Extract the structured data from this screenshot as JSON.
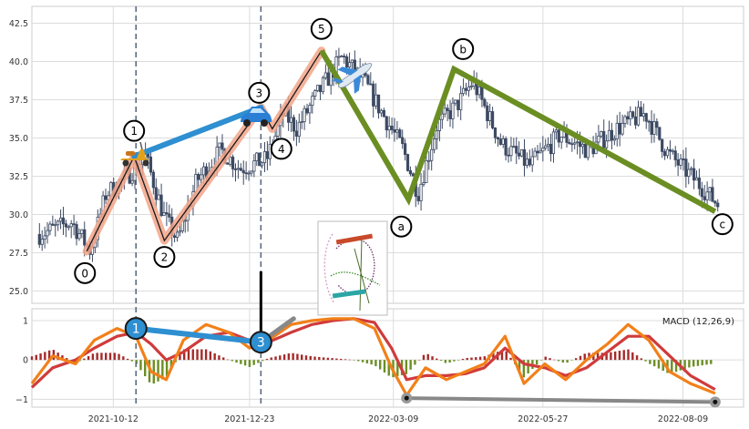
{
  "chart_data": [
    {
      "type": "candlestick",
      "title": "",
      "xlabel": "",
      "ylabel": "",
      "ylim": [
        24.2,
        43.6
      ],
      "yticks": [
        "25.0",
        "27.5",
        "30.0",
        "32.5",
        "35.0",
        "37.5",
        "40.0",
        "42.5"
      ],
      "ytick_values": [
        25.0,
        27.5,
        30.0,
        32.5,
        35.0,
        37.5,
        40.0,
        42.5
      ],
      "x_range": [
        "2021-08-30",
        "2022-09-10"
      ],
      "xticks": [
        "2021-10-12",
        "2021-12-23",
        "2022-03-09",
        "2022-05-27",
        "2022-08-09"
      ],
      "grid": true,
      "price_anchors": [
        {
          "date": "2021-09-03",
          "price": 28.7
        },
        {
          "date": "2021-09-20",
          "price": 29.5
        },
        {
          "date": "2021-09-30",
          "price": 27.6
        },
        {
          "date": "2021-10-08",
          "price": 31.3
        },
        {
          "date": "2021-10-20",
          "price": 32.6
        },
        {
          "date": "2021-10-29",
          "price": 33.8
        },
        {
          "date": "2021-11-08",
          "price": 29.8
        },
        {
          "date": "2021-11-15",
          "price": 28.3
        },
        {
          "date": "2021-11-25",
          "price": 32.2
        },
        {
          "date": "2021-12-08",
          "price": 34.2
        },
        {
          "date": "2021-12-18",
          "price": 33.0
        },
        {
          "date": "2022-01-01",
          "price": 33.6
        },
        {
          "date": "2022-01-10",
          "price": 36.6
        },
        {
          "date": "2022-01-17",
          "price": 35.6
        },
        {
          "date": "2022-01-28",
          "price": 37.9
        },
        {
          "date": "2022-02-10",
          "price": 40.3
        },
        {
          "date": "2022-02-22",
          "price": 38.6
        },
        {
          "date": "2022-03-05",
          "price": 36.2
        },
        {
          "date": "2022-03-14",
          "price": 34.3
        },
        {
          "date": "2022-03-22",
          "price": 31.4
        },
        {
          "date": "2022-04-01",
          "price": 35.8
        },
        {
          "date": "2022-04-12",
          "price": 37.2
        },
        {
          "date": "2022-04-20",
          "price": 38.7
        },
        {
          "date": "2022-05-05",
          "price": 34.6
        },
        {
          "date": "2022-05-20",
          "price": 33.2
        },
        {
          "date": "2022-06-05",
          "price": 35.2
        },
        {
          "date": "2022-06-20",
          "price": 34.2
        },
        {
          "date": "2022-07-05",
          "price": 35.6
        },
        {
          "date": "2022-07-20",
          "price": 36.6
        },
        {
          "date": "2022-08-01",
          "price": 34.0
        },
        {
          "date": "2022-08-15",
          "price": 32.3
        },
        {
          "date": "2022-08-28",
          "price": 30.6
        }
      ],
      "waves": [
        {
          "label": "0",
          "date": "2021-09-28",
          "price": 27.6
        },
        {
          "label": "1",
          "date": "2021-10-23",
          "price": 33.8
        },
        {
          "label": "2",
          "date": "2021-11-08",
          "price": 28.3
        },
        {
          "label": "3",
          "date": "2021-12-29",
          "price": 37.0
        },
        {
          "label": "4",
          "date": "2022-01-04",
          "price": 35.6
        },
        {
          "label": "5",
          "date": "2022-01-30",
          "price": 40.7
        },
        {
          "label": "a",
          "date": "2022-03-17",
          "price": 31.0
        },
        {
          "label": "b",
          "date": "2022-04-10",
          "price": 39.5
        },
        {
          "label": "c",
          "date": "2022-08-26",
          "price": 30.2
        }
      ],
      "vertical_markers": [
        "2021-10-24",
        "2021-12-29"
      ]
    },
    {
      "type": "line",
      "legend": "MACD (12,26,9)",
      "ylim": [
        -1.2,
        1.3
      ],
      "yticks": [
        "−1",
        "0",
        "1"
      ],
      "ytick_values": [
        -1,
        0,
        1
      ],
      "series": [
        {
          "name": "macd",
          "color": "#f28019",
          "dates": [
            "2021-08-30",
            "2021-09-10",
            "2021-09-22",
            "2021-10-02",
            "2021-10-14",
            "2021-10-24",
            "2021-11-01",
            "2021-11-09",
            "2021-11-18",
            "2021-11-30",
            "2021-12-12",
            "2021-12-23",
            "2022-01-02",
            "2022-01-14",
            "2022-01-25",
            "2022-02-05",
            "2022-02-16",
            "2022-02-27",
            "2022-03-08",
            "2022-03-16",
            "2022-03-26",
            "2022-04-06",
            "2022-04-16",
            "2022-04-26",
            "2022-05-07",
            "2022-05-17",
            "2022-05-28",
            "2022-06-08",
            "2022-06-19",
            "2022-06-30",
            "2022-07-11",
            "2022-07-22",
            "2022-08-02",
            "2022-08-13",
            "2022-08-26"
          ],
          "values": [
            -0.6,
            0.1,
            -0.1,
            0.5,
            0.8,
            0.6,
            -0.3,
            -0.5,
            0.5,
            0.9,
            0.7,
            0.3,
            0.5,
            0.9,
            1.0,
            1.05,
            1.05,
            0.8,
            -0.2,
            -0.9,
            -0.2,
            -0.5,
            -0.3,
            -0.1,
            0.6,
            -0.6,
            -0.1,
            -0.5,
            0.0,
            0.4,
            0.9,
            0.5,
            -0.3,
            -0.6,
            -0.85
          ]
        },
        {
          "name": "signal",
          "color": "#d03b3b",
          "dates": [
            "2021-08-30",
            "2021-09-10",
            "2021-09-22",
            "2021-10-02",
            "2021-10-14",
            "2021-10-24",
            "2021-11-01",
            "2021-11-09",
            "2021-11-18",
            "2021-11-30",
            "2021-12-12",
            "2021-12-23",
            "2022-01-02",
            "2022-01-14",
            "2022-01-25",
            "2022-02-05",
            "2022-02-16",
            "2022-02-27",
            "2022-03-08",
            "2022-03-16",
            "2022-03-26",
            "2022-04-06",
            "2022-04-16",
            "2022-04-26",
            "2022-05-07",
            "2022-05-17",
            "2022-05-28",
            "2022-06-08",
            "2022-06-19",
            "2022-06-30",
            "2022-07-11",
            "2022-07-22",
            "2022-08-02",
            "2022-08-13",
            "2022-08-26"
          ],
          "values": [
            -0.7,
            -0.2,
            0.0,
            0.3,
            0.6,
            0.7,
            0.4,
            0.0,
            0.2,
            0.6,
            0.7,
            0.5,
            0.45,
            0.7,
            0.9,
            1.0,
            1.05,
            0.95,
            0.3,
            -0.5,
            -0.4,
            -0.4,
            -0.35,
            -0.2,
            0.3,
            -0.1,
            -0.2,
            -0.4,
            -0.2,
            0.2,
            0.6,
            0.6,
            0.1,
            -0.4,
            -0.75
          ]
        }
      ],
      "histogram_colors": {
        "positive": "#a52a2a",
        "negative": "#6b8e23"
      },
      "markers": [
        {
          "label": "1",
          "date": "2021-10-24",
          "value": 0.8
        },
        {
          "label": "3",
          "date": "2021-12-29",
          "value": 0.45
        }
      ],
      "divergence_points": [
        {
          "date": "2022-03-16",
          "value": -0.97
        },
        {
          "date": "2022-08-26",
          "value": -1.07
        }
      ]
    }
  ],
  "icons": {
    "scooter": "scooter-icon",
    "car": "car-icon",
    "plane": "airplane-icon",
    "inset": "roller-coaster-thumbnail-icon"
  },
  "colors": {
    "candle": "#3d4a63",
    "impulse": "#f2a58a",
    "bridge": "#2e8fd1",
    "correction": "#6b8e23",
    "divergence": "#888888",
    "marker_line": "#5b6b80"
  }
}
